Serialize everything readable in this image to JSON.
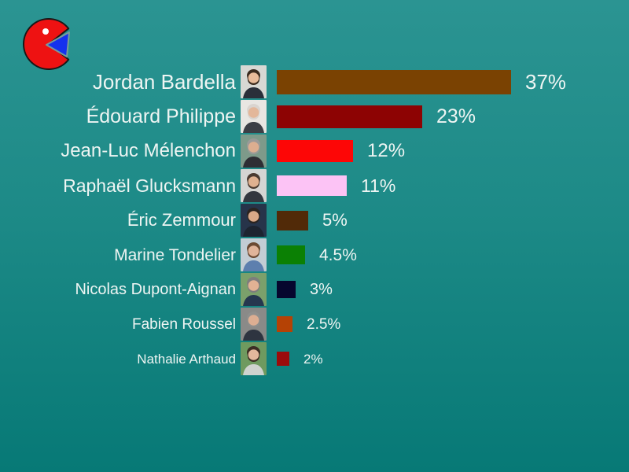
{
  "background": {
    "gradient_top": "#2b9492",
    "gradient_bottom": "#077976"
  },
  "text_color": "#eef5f3",
  "logo": {
    "description": "pie-chart pacman logo",
    "body_color": "#ee1212",
    "slice_color": "#1531ee",
    "dot_color": "#ffffff",
    "outline_color": "#181818",
    "slice_outline_color": "#7b9a9a"
  },
  "chart_data": {
    "type": "bar",
    "orientation": "horizontal",
    "title": "",
    "xlabel": "",
    "ylabel": "",
    "xlim": [
      0,
      40
    ],
    "grid": false,
    "legend": "none",
    "categories": [
      "Jordan Bardella",
      "Édouard Philippe",
      "Jean-Luc Mélenchon",
      "Raphaël Glucksmann",
      "Éric Zemmour",
      "Marine Tondelier",
      "Nicolas Dupont-Aignan",
      "Fabien Roussel",
      "Nathalie Arthaud"
    ],
    "values": [
      37,
      23,
      12,
      11,
      5,
      4.5,
      3,
      2.5,
      2
    ],
    "labels": [
      "37%",
      "23%",
      "12%",
      "11%",
      "5%",
      "4.5%",
      "3%",
      "2.5%",
      "2%"
    ],
    "bar_colors": [
      "#7a4202",
      "#8d0303",
      "#fd0606",
      "#fcc3f5",
      "#512a08",
      "#0b8004",
      "#06062e",
      "#b54205",
      "#9b0b0b"
    ]
  },
  "candidates": [
    {
      "name": "Jordan Bardella",
      "label": "37%",
      "photo": {
        "bg": "#d8d8d4",
        "skin": "#e8bb9a",
        "hair": "#3a2a1e",
        "torso": "#2a2f3a"
      }
    },
    {
      "name": "Édouard Philippe",
      "label": "23%",
      "photo": {
        "bg": "#e8e6e2",
        "skin": "#e3b79a",
        "hair": "#d9d4cf",
        "torso": "#3c3f46"
      }
    },
    {
      "name": "Jean-Luc Mélenchon",
      "label": "12%",
      "photo": {
        "bg": "#7e9a8a",
        "skin": "#dcae90",
        "hair": "#9a9a98",
        "torso": "#2e2e34"
      }
    },
    {
      "name": "Raphaël Glucksmann",
      "label": "11%",
      "photo": {
        "bg": "#d5d5d3",
        "skin": "#dfb190",
        "hair": "#4a3a30",
        "torso": "#33373f"
      }
    },
    {
      "name": "Éric Zemmour",
      "label": "5%",
      "photo": {
        "bg": "#27344a",
        "skin": "#d9a988",
        "hair": "#2b2420",
        "torso": "#1d2430"
      }
    },
    {
      "name": "Marine Tondelier",
      "label": "4.5%",
      "photo": {
        "bg": "#c3cdd4",
        "skin": "#e0b49a",
        "hair": "#6b4a33",
        "torso": "#5d7fae"
      }
    },
    {
      "name": "Nicolas Dupont-Aignan",
      "label": "3%",
      "photo": {
        "bg": "#7ba06b",
        "skin": "#e2b294",
        "hair": "#7d7d7d",
        "torso": "#26374f"
      }
    },
    {
      "name": "Fabien Roussel",
      "label": "2.5%",
      "photo": {
        "bg": "#8a8a88",
        "skin": "#dcae92",
        "hair": "#8f8f8d",
        "torso": "#2e3440"
      }
    },
    {
      "name": "Nathalie Arthaud",
      "label": "2%",
      "photo": {
        "bg": "#6f9a5f",
        "skin": "#e2b89c",
        "hair": "#3c2d24",
        "torso": "#cfd3cf"
      }
    }
  ]
}
